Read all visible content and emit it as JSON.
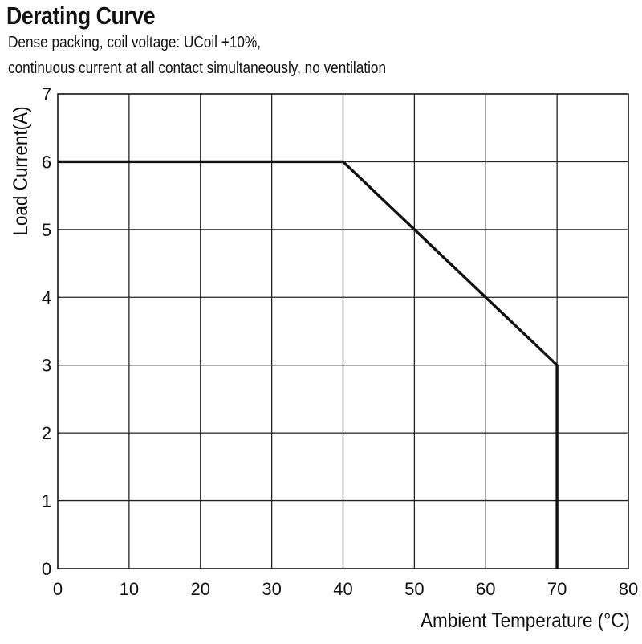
{
  "chart_data": {
    "type": "line",
    "title": "Derating Curve",
    "subtitle_lines": [
      "Dense packing, coil voltage: UCoil +10%,",
      "continuous current at all contact simultaneously, no ventilation"
    ],
    "xlabel": "Ambient Temperature (°C)",
    "ylabel": "Load Current(A)",
    "xlim": [
      0,
      80
    ],
    "ylim": [
      0,
      7
    ],
    "x_ticks": [
      "0",
      "10",
      "20",
      "30",
      "40",
      "50",
      "60",
      "70",
      "80"
    ],
    "y_ticks": [
      "0",
      "1",
      "2",
      "3",
      "4",
      "5",
      "6",
      "7"
    ],
    "grid": true,
    "series": [
      {
        "x": [
          0,
          40,
          70,
          70
        ],
        "y": [
          6,
          6,
          3,
          0
        ]
      }
    ],
    "colors": {
      "line": "#111111",
      "grid": "#222222"
    }
  }
}
